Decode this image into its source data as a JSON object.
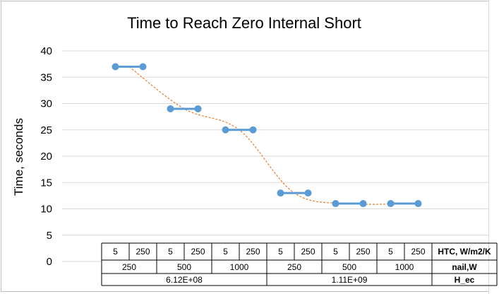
{
  "chart_data": {
    "type": "line",
    "title": "Time to Reach Zero Internal Short",
    "ylabel": "Time, seconds",
    "xlabel": "",
    "ylim": [
      0,
      40
    ],
    "yticks": [
      "0",
      "5",
      "10",
      "15",
      "20",
      "25",
      "30",
      "35",
      "40"
    ],
    "grid": true,
    "legend": "none",
    "colors": {
      "series": "#5b9bd5",
      "trend": "#ed7d31",
      "grid": "#d9d9d9"
    },
    "htc_row_label": "HTC, W/m2/K",
    "nail_row_label": "nail,W",
    "hec_row_label": "H_ec",
    "htc": [
      "5",
      "250",
      "5",
      "250",
      "5",
      "250",
      "5",
      "250",
      "5",
      "250",
      "5",
      "250"
    ],
    "nail": [
      "250",
      "500",
      "1000",
      "250",
      "500",
      "1000"
    ],
    "hec": [
      "6.12E+08",
      "1.11E+09"
    ],
    "values": [
      37,
      37,
      29,
      29,
      25,
      25,
      13,
      13,
      11,
      11,
      11,
      11
    ]
  }
}
